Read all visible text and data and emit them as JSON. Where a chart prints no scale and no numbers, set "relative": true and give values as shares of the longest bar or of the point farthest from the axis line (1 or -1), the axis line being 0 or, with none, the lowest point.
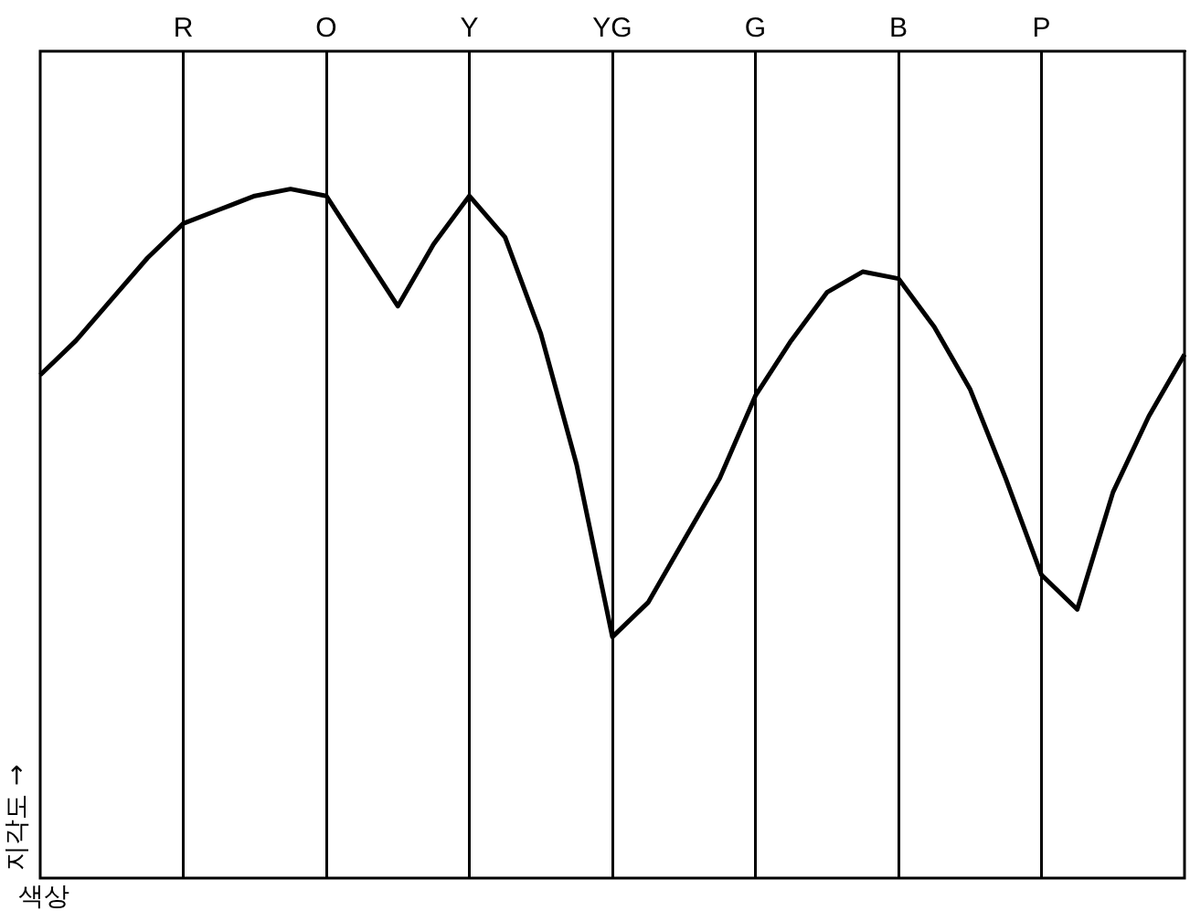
{
  "chart_data": {
    "type": "line",
    "relative": true,
    "xlabel": "색상",
    "ylabel": "지각도 →",
    "categories": [
      null,
      null,
      null,
      null,
      "R",
      null,
      null,
      null,
      "O",
      null,
      null,
      null,
      "Y",
      null,
      null,
      null,
      "YG",
      null,
      null,
      null,
      "G",
      null,
      null,
      null,
      "B",
      null,
      null,
      null,
      "P",
      null,
      null,
      null,
      null
    ],
    "series": [
      {
        "color": "#000000",
        "values": [
          0.73,
          0.78,
          0.84,
          0.9,
          0.95,
          0.97,
          0.99,
          1,
          0.99,
          0.91,
          0.83,
          0.92,
          0.99,
          0.93,
          0.79,
          0.6,
          0.35,
          0.4,
          0.49,
          0.58,
          0.7,
          0.78,
          0.85,
          0.88,
          0.87,
          0.8,
          0.71,
          0.58,
          0.44,
          0.39,
          0.56,
          0.67,
          0.76
        ]
      }
    ],
    "grid": "x",
    "legend": false,
    "marker": "none",
    "line_style": "solid"
  }
}
